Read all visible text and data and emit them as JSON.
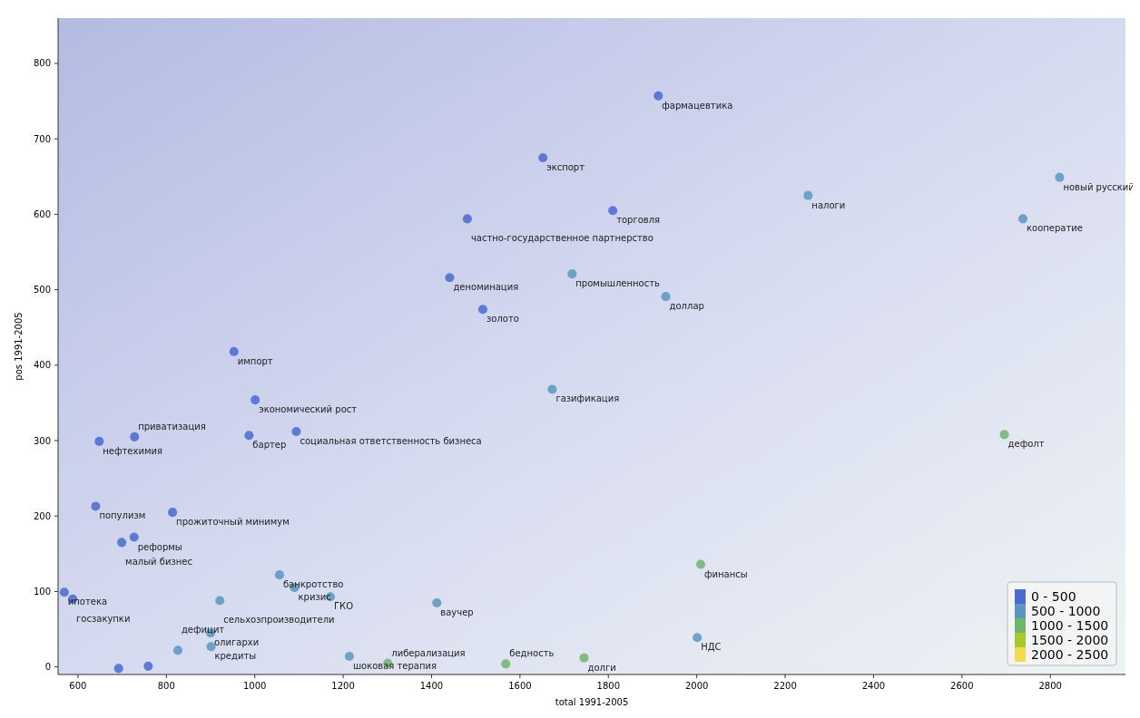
{
  "chart_data": {
    "type": "scatter",
    "xlabel": "total 1991-2005",
    "ylabel": "pos 1991-2005",
    "xlim": [
      555,
      2970
    ],
    "ylim": [
      -10,
      860
    ],
    "xticks": [
      600,
      800,
      1000,
      1200,
      1400,
      1600,
      1800,
      2000,
      2200,
      2400,
      2600,
      2800
    ],
    "yticks": [
      0,
      100,
      200,
      300,
      400,
      500,
      600,
      700,
      800
    ],
    "grid": false,
    "legend": "bottom right",
    "marker": "circle",
    "series": [
      {
        "name": "0 - 500",
        "color": "#4a6ad0",
        "x": [
          1913,
          1652,
          1810,
          1481,
          1441,
          1516,
          953,
          1001,
          648,
          728,
          987,
          1094,
          640,
          814,
          727,
          699,
          569,
          588,
          692,
          759
        ],
        "values": [
          757,
          675,
          605,
          594,
          516,
          474,
          418,
          354,
          299,
          305,
          307,
          312,
          213,
          205,
          172,
          165,
          99,
          90,
          -2,
          1
        ]
      },
      {
        "name": "500 - 1000",
        "color": "#5a96c0",
        "x": [
          1718,
          1930,
          1673,
          2252,
          2821,
          2738,
          1056,
          1090,
          1171,
          921,
          1412,
          900,
          901,
          826,
          2001,
          1214
        ],
        "values": [
          521,
          491,
          368,
          625,
          649,
          594,
          122,
          105,
          93,
          88,
          85,
          45,
          27,
          22,
          39,
          14
        ]
      },
      {
        "name": "1000 - 1500",
        "color": "#6fb46f",
        "x": [
          2009,
          2696,
          1745,
          1568,
          1301
        ],
        "values": [
          136,
          308,
          12,
          4,
          5
        ]
      },
      {
        "name": "1500 - 2000",
        "color": "#a8c832"
      },
      {
        "name": "2000 - 2500",
        "color": "#f0dc50"
      }
    ],
    "annotations": [
      {
        "text": "фармацевтика",
        "x": 1913,
        "y": 757
      },
      {
        "text": "экспорт",
        "x": 1652,
        "y": 675
      },
      {
        "text": "торговля",
        "x": 1810,
        "y": 605
      },
      {
        "text": "частно-государственное партнерство",
        "x": 1481,
        "y": 594
      },
      {
        "text": "деноминация",
        "x": 1441,
        "y": 516
      },
      {
        "text": "золото",
        "x": 1516,
        "y": 474
      },
      {
        "text": "импорт",
        "x": 953,
        "y": 418
      },
      {
        "text": "экономический рост",
        "x": 1001,
        "y": 354
      },
      {
        "text": "нефтехимия",
        "x": 648,
        "y": 299
      },
      {
        "text": "приватизация",
        "x": 728,
        "y": 305
      },
      {
        "text": "бартер",
        "x": 987,
        "y": 307
      },
      {
        "text": "социальная ответственность бизнеса",
        "x": 1094,
        "y": 312
      },
      {
        "text": "популизм",
        "x": 640,
        "y": 213
      },
      {
        "text": "прожиточный минимум",
        "x": 814,
        "y": 205
      },
      {
        "text": "реформы",
        "x": 727,
        "y": 172
      },
      {
        "text": "малый бизнес",
        "x": 699,
        "y": 165
      },
      {
        "text": "ипотека",
        "x": 569,
        "y": 99
      },
      {
        "text": "госзакупки",
        "x": 588,
        "y": 90
      },
      {
        "text": "промышленность",
        "x": 1718,
        "y": 521
      },
      {
        "text": "доллар",
        "x": 1930,
        "y": 491
      },
      {
        "text": "газификация",
        "x": 1673,
        "y": 368
      },
      {
        "text": "налоги",
        "x": 2252,
        "y": 625
      },
      {
        "text": "новый русский",
        "x": 2821,
        "y": 649
      },
      {
        "text": "кооператие",
        "x": 2738,
        "y": 594
      },
      {
        "text": "банкротство",
        "x": 1056,
        "y": 122
      },
      {
        "text": "кризис",
        "x": 1090,
        "y": 105
      },
      {
        "text": "ГКО",
        "x": 1171,
        "y": 93
      },
      {
        "text": "сельхозпроизводители",
        "x": 921,
        "y": 88
      },
      {
        "text": "ваучер",
        "x": 1412,
        "y": 85
      },
      {
        "text": "олигархи",
        "x": 900,
        "y": 45
      },
      {
        "text": "кредиты",
        "x": 901,
        "y": 27
      },
      {
        "text": "дефицит",
        "x": 826,
        "y": 22
      },
      {
        "text": "НДС",
        "x": 2001,
        "y": 39
      },
      {
        "text": "шоковая терапия",
        "x": 1214,
        "y": 14
      },
      {
        "text": "финансы",
        "x": 2009,
        "y": 136
      },
      {
        "text": "дефолт",
        "x": 2696,
        "y": 308
      },
      {
        "text": "долги",
        "x": 1745,
        "y": 12
      },
      {
        "text": "бедность",
        "x": 1568,
        "y": 4
      },
      {
        "text": "либерализация",
        "x": 1301,
        "y": 5
      }
    ]
  }
}
